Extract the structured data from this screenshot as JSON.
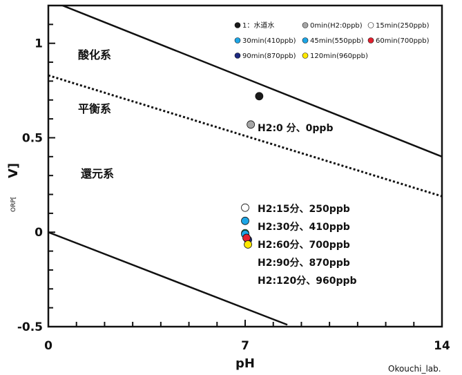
{
  "chart_data": {
    "type": "scatter",
    "xlabel": "pH",
    "ylabel": "ORP[",
    "ylabel_unit": "V]",
    "xlim": [
      0,
      14
    ],
    "ylim": [
      -0.5,
      1.2
    ],
    "x_ticks": [
      "0",
      "7",
      "14"
    ],
    "y_ticks": [
      "-0.5",
      "0",
      "0.5",
      "1"
    ],
    "grid": false,
    "legend_position": "top-right",
    "series": [
      {
        "name": "1：水道水",
        "color": "#1a1a1a",
        "x": 7.5,
        "y": 0.72
      },
      {
        "name": "0min(H2:0ppb)",
        "color": "#a6a6a6",
        "x": 7.2,
        "y": 0.57
      },
      {
        "name": "15min(250ppb)",
        "color": "#ffffff",
        "x": 7.0,
        "y": 0.13
      },
      {
        "name": "30min(410ppb)",
        "color": "#1ea6e6",
        "x": 7.0,
        "y": 0.06
      },
      {
        "name": "45min(550ppb)",
        "color": "#1ea6e6",
        "x": 7.0,
        "y": -0.01
      },
      {
        "name": "60min(700ppb)",
        "color": "#e3212f",
        "x": 7.05,
        "y": -0.03
      },
      {
        "name": "90min(870ppb)",
        "color": "#1d2a80",
        "x": 7.1,
        "y": -0.04
      },
      {
        "name": "120min(960ppb)",
        "color": "#ffe800",
        "x": 7.1,
        "y": -0.065
      }
    ],
    "extra_points": [
      {
        "color": "#1a9a4a",
        "x": 7.0,
        "y": -0.005
      }
    ],
    "lines": [
      {
        "style": "solid",
        "x": [
          0,
          14
        ],
        "y": [
          1.23,
          0.4
        ]
      },
      {
        "style": "dotted",
        "x": [
          0,
          14
        ],
        "y": [
          0.83,
          0.19
        ]
      },
      {
        "style": "solid",
        "x": [
          0,
          8.5
        ],
        "y": [
          0.0,
          -0.49
        ]
      }
    ],
    "region_labels": [
      "酸化系",
      "平衡系",
      "還元系"
    ],
    "annotations": [
      "H2:0 分、0ppb",
      "H2:15分、250ppb",
      "H2:30分、410ppb",
      "H2:60分、700ppb",
      "H2:90分、870ppb",
      "H2:120分、960ppb"
    ],
    "credit": "Okouchi_lab."
  }
}
